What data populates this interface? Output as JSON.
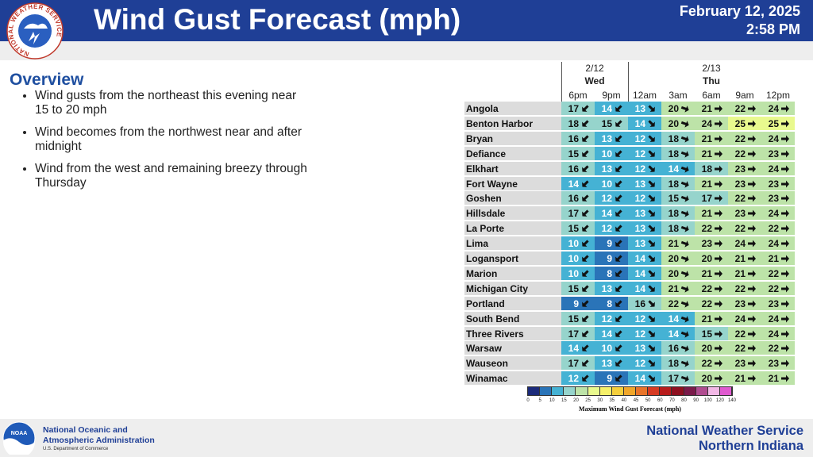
{
  "header": {
    "logo_text": "NATIONAL WEATHER SERVICE",
    "title": "Wind Gust Forecast (mph)",
    "date": "February 12, 2025",
    "time": "2:58 PM"
  },
  "overview": {
    "heading": "Overview",
    "bullets": [
      "Wind gusts from the northeast this evening near 15 to 20 mph",
      "Wind becomes from the northwest near and after midnight",
      "Wind from the west and remaining breezy through Thursday"
    ]
  },
  "table": {
    "groups": [
      {
        "date": "2/12",
        "day": "Wed",
        "times": [
          "6pm",
          "9pm"
        ]
      },
      {
        "date": "2/13",
        "day": "Thu",
        "times": [
          "12am",
          "3am",
          "6am",
          "9am",
          "12pm"
        ]
      }
    ],
    "rows": [
      {
        "name": "Angola",
        "values": [
          17,
          14,
          13,
          20,
          21,
          22,
          24
        ]
      },
      {
        "name": "Benton Harbor",
        "values": [
          18,
          15,
          14,
          20,
          24,
          25,
          25
        ]
      },
      {
        "name": "Bryan",
        "values": [
          16,
          13,
          12,
          18,
          21,
          22,
          24
        ]
      },
      {
        "name": "Defiance",
        "values": [
          15,
          10,
          12,
          18,
          21,
          22,
          23
        ]
      },
      {
        "name": "Elkhart",
        "values": [
          16,
          13,
          12,
          14,
          18,
          23,
          24
        ]
      },
      {
        "name": "Fort Wayne",
        "values": [
          14,
          10,
          13,
          18,
          21,
          23,
          23
        ]
      },
      {
        "name": "Goshen",
        "values": [
          16,
          12,
          12,
          15,
          17,
          22,
          23
        ]
      },
      {
        "name": "Hillsdale",
        "values": [
          17,
          14,
          13,
          18,
          21,
          23,
          24
        ]
      },
      {
        "name": "La Porte",
        "values": [
          15,
          12,
          13,
          18,
          22,
          22,
          22
        ]
      },
      {
        "name": "Lima",
        "values": [
          10,
          9,
          13,
          21,
          23,
          24,
          24
        ]
      },
      {
        "name": "Logansport",
        "values": [
          10,
          9,
          14,
          20,
          20,
          21,
          21
        ]
      },
      {
        "name": "Marion",
        "values": [
          10,
          8,
          14,
          20,
          21,
          21,
          22
        ]
      },
      {
        "name": "Michigan City",
        "values": [
          15,
          13,
          14,
          21,
          22,
          22,
          22
        ]
      },
      {
        "name": "Portland",
        "values": [
          9,
          8,
          16,
          22,
          22,
          23,
          23
        ]
      },
      {
        "name": "South Bend",
        "values": [
          15,
          12,
          12,
          14,
          21,
          24,
          24
        ]
      },
      {
        "name": "Three Rivers",
        "values": [
          17,
          14,
          12,
          14,
          15,
          22,
          24
        ]
      },
      {
        "name": "Warsaw",
        "values": [
          14,
          10,
          13,
          16,
          20,
          22,
          22
        ]
      },
      {
        "name": "Wauseon",
        "values": [
          17,
          13,
          12,
          18,
          22,
          23,
          23
        ]
      },
      {
        "name": "Winamac",
        "values": [
          12,
          9,
          14,
          17,
          20,
          21,
          21
        ]
      }
    ]
  },
  "legend": {
    "title": "Maximum Wind Gust Forecast (mph)",
    "ticks": [
      0,
      5,
      10,
      15,
      20,
      25,
      30,
      35,
      40,
      45,
      50,
      60,
      70,
      80,
      90,
      100,
      120,
      140
    ],
    "colors": [
      "#1b2a7a",
      "#2a74b8",
      "#45b2d4",
      "#96d4cc",
      "#bde3a8",
      "#e9f98e",
      "#f6f06a",
      "#f5cf3c",
      "#f0a62a",
      "#e8742a",
      "#d63a22",
      "#b81c1c",
      "#8e1020",
      "#7a1a4a",
      "#b04c90",
      "#f2b8e6",
      "#e05ad0"
    ]
  },
  "footer": {
    "agency_line1": "National Oceanic and",
    "agency_line2": "Atmospheric Administration",
    "department": "U.S. Department of Commerce",
    "logo_text": "NOAA",
    "office_line1": "National Weather Service",
    "office_line2": "Northern Indiana"
  }
}
